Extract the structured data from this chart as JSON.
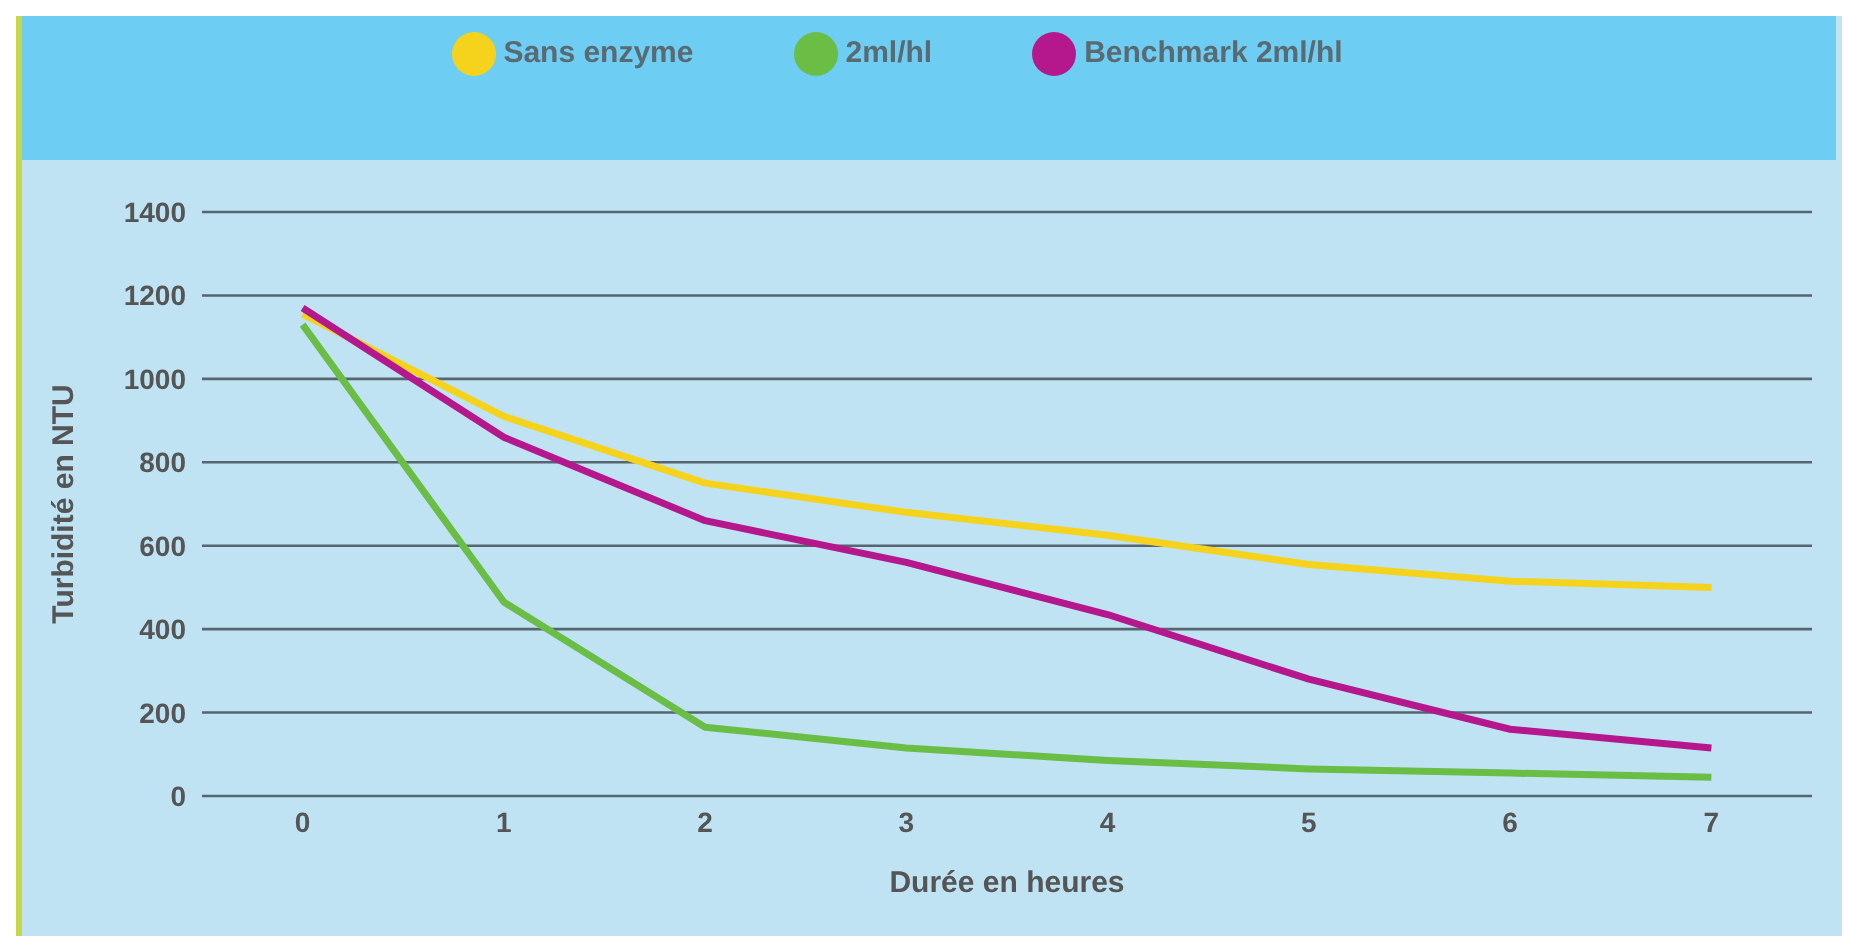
{
  "chart_data": {
    "type": "line",
    "xlabel": "Durée en heures",
    "ylabel": "Turbidité en NTU",
    "x": [
      0,
      1,
      2,
      3,
      4,
      5,
      6,
      7
    ],
    "series": [
      {
        "name": "Sans enzyme",
        "color": "#f5d31c",
        "values": [
          1155,
          910,
          750,
          680,
          625,
          555,
          515,
          500
        ]
      },
      {
        "name": "2ml/hl",
        "color": "#6abd45",
        "values": [
          1130,
          465,
          165,
          115,
          85,
          65,
          55,
          45
        ]
      },
      {
        "name": "Benchmark 2ml/hl",
        "color": "#b5178c",
        "values": [
          1170,
          860,
          660,
          560,
          435,
          280,
          160,
          115
        ]
      }
    ],
    "xlim": [
      -0.5,
      7.5
    ],
    "xticks": [
      0,
      1,
      2,
      3,
      4,
      5,
      6,
      7
    ],
    "ylim": [
      0,
      1400
    ],
    "yticks": [
      0,
      200,
      400,
      600,
      800,
      1000,
      1200,
      1400
    ],
    "grid": "y",
    "legend": "top",
    "marker": "none",
    "line_style": "solid"
  }
}
